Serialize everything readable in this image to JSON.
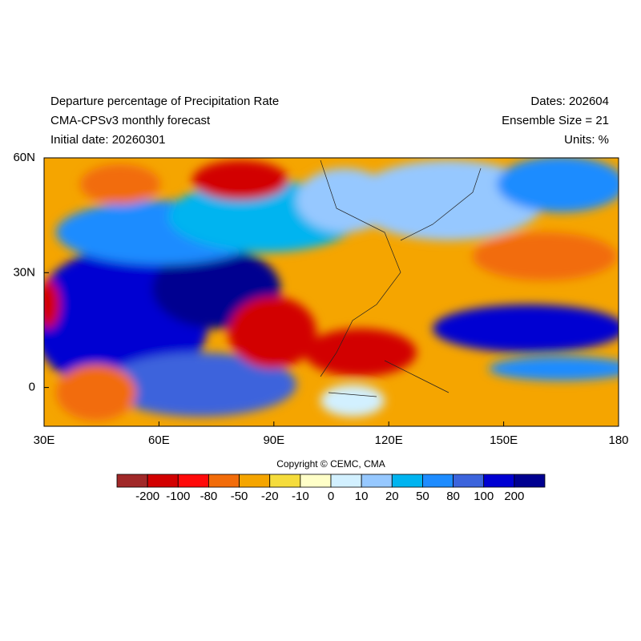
{
  "header": {
    "left": [
      "Departure percentage of Precipitation Rate",
      "CMA-CPSv3 monthly forecast",
      "Initial date: 20260301"
    ],
    "right": [
      "Dates: 202604",
      "Ensemble Size = 21",
      "Units: %"
    ]
  },
  "map": {
    "lon_labels": [
      "30E",
      "60E",
      "90E",
      "120E",
      "150E",
      "180"
    ],
    "lat_labels": [
      "60N",
      "30N",
      "0"
    ]
  },
  "copyright": "Copyright © CEMC, CMA",
  "colorbar": {
    "labels": [
      "-200",
      "-100",
      "-80",
      "-50",
      "-20",
      "-10",
      "0",
      "10",
      "20",
      "50",
      "80",
      "100",
      "200"
    ],
    "colors": [
      "#a02828",
      "#d20000",
      "#ff0a0a",
      "#f26c0a",
      "#f5a500",
      "#f5dc3c",
      "#ffffc8",
      "#d2f0ff",
      "#96c8ff",
      "#00b4f0",
      "#1e8cff",
      "#3c64dc",
      "#0000d2",
      "#000090"
    ]
  }
}
